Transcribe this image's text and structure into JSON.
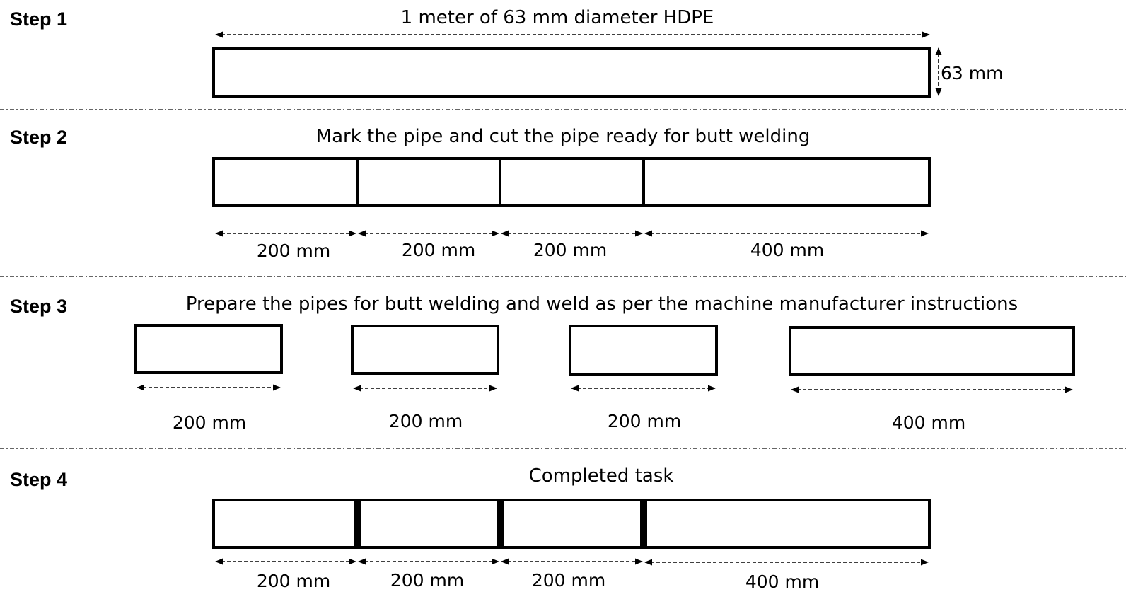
{
  "step1": {
    "label": "Step 1",
    "caption": "1 meter of 63 mm diameter HDPE",
    "diameter_label": "63 mm"
  },
  "step2": {
    "label": "Step 2",
    "caption": "Mark the pipe and cut the pipe ready for butt welding",
    "segments": [
      "200 mm",
      "200 mm",
      "200 mm",
      "400 mm"
    ]
  },
  "step3": {
    "label": "Step 3",
    "caption": "Prepare the pipes for butt welding and weld as per the machine manufacturer instructions",
    "segments": [
      "200 mm",
      "200 mm",
      "200 mm",
      "400 mm"
    ]
  },
  "step4": {
    "label": "Step 4",
    "caption": "Completed task",
    "segments": [
      "200 mm",
      "200 mm",
      "200 mm",
      "400 mm"
    ]
  },
  "colors": {
    "line": "#000000",
    "background": "#ffffff"
  }
}
